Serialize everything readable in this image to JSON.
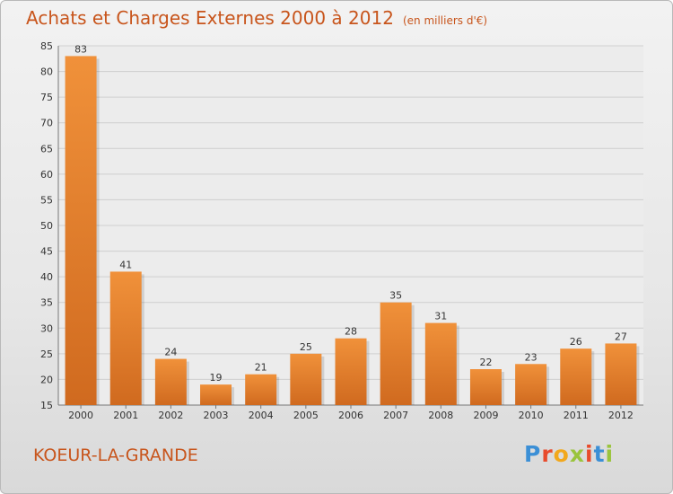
{
  "chart_data": {
    "type": "bar",
    "title": "Achats et Charges Externes 2000 à 2012",
    "subtitle": "(en milliers d'€)",
    "categories": [
      "2000",
      "2001",
      "2002",
      "2003",
      "2004",
      "2005",
      "2006",
      "2007",
      "2008",
      "2009",
      "2010",
      "2011",
      "2012"
    ],
    "values": [
      83,
      41,
      24,
      19,
      21,
      25,
      28,
      35,
      31,
      22,
      23,
      26,
      27
    ],
    "ylim": [
      15,
      85
    ],
    "yticks": [
      15,
      20,
      25,
      30,
      35,
      40,
      45,
      50,
      55,
      60,
      65,
      70,
      75,
      80,
      85
    ],
    "grid": true,
    "bar_color": "#f0913a",
    "bar_color_dark": "#d06a1f"
  },
  "footer": {
    "commune": "KOEUR-LA-GRANDE",
    "brand": "Proxiti",
    "brand_colors": [
      "#3b8fd6",
      "#e84b2c",
      "#f2a81c",
      "#9ac43d",
      "#e84b2c",
      "#3b8fd6",
      "#9ac43d"
    ]
  },
  "colors": {
    "title": "#c8551c",
    "grid": "#cfcfcf",
    "axis": "#777777"
  }
}
